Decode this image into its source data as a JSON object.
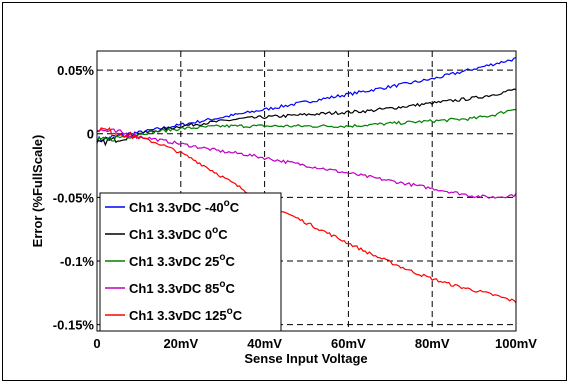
{
  "chart_data": {
    "type": "line",
    "title": "",
    "xlabel": "Sense Input Voltage",
    "ylabel": "Error (%FullScale)",
    "xlim": [
      0,
      100
    ],
    "ylim": [
      -0.155,
      0.065
    ],
    "grid": true,
    "legend_position": "bottom-left",
    "x_ticks": [
      {
        "value": 0,
        "label": "0"
      },
      {
        "value": 20,
        "label": "20mV"
      },
      {
        "value": 40,
        "label": "40mV"
      },
      {
        "value": 60,
        "label": "60mV"
      },
      {
        "value": 80,
        "label": "80mV"
      },
      {
        "value": 100,
        "label": "100mV"
      }
    ],
    "y_ticks": [
      {
        "value": 0.05,
        "label": "0.05%"
      },
      {
        "value": 0,
        "label": "0"
      },
      {
        "value": -0.05,
        "label": "-0.05%"
      },
      {
        "value": -0.1,
        "label": "-0.1%"
      },
      {
        "value": -0.15,
        "label": "-0.15%"
      }
    ],
    "x": [
      0,
      5,
      10,
      15,
      20,
      25,
      30,
      35,
      40,
      45,
      50,
      55,
      60,
      65,
      70,
      75,
      80,
      85,
      90,
      95,
      100
    ],
    "series": [
      {
        "name_prefix": "Ch1 3.3vDC ",
        "name_temp": "-40",
        "unit_sup": "o",
        "unit": "C",
        "color": "#0000ff",
        "values": [
          -0.005,
          -0.002,
          0.001,
          0.004,
          0.007,
          0.01,
          0.013,
          0.016,
          0.019,
          0.022,
          0.025,
          0.028,
          0.031,
          0.034,
          0.037,
          0.04,
          0.043,
          0.047,
          0.051,
          0.055,
          0.059
        ]
      },
      {
        "name_prefix": "Ch1 3.3vDC ",
        "name_temp": "0",
        "unit_sup": "o",
        "unit": "C",
        "color": "#000000",
        "values": [
          -0.008,
          -0.004,
          0.0,
          0.003,
          0.006,
          0.008,
          0.01,
          0.012,
          0.013,
          0.014,
          0.015,
          0.016,
          0.017,
          0.018,
          0.02,
          0.022,
          0.024,
          0.026,
          0.028,
          0.031,
          0.035
        ]
      },
      {
        "name_prefix": "Ch1 3.3vDC ",
        "name_temp": "25",
        "unit_sup": "o",
        "unit": "C",
        "color": "#008000",
        "values": [
          -0.006,
          -0.003,
          0.0,
          0.002,
          0.004,
          0.005,
          0.006,
          0.006,
          0.006,
          0.006,
          0.006,
          0.006,
          0.006,
          0.007,
          0.008,
          0.009,
          0.01,
          0.011,
          0.012,
          0.015,
          0.02
        ]
      },
      {
        "name_prefix": "Ch1 3.3vDC ",
        "name_temp": "85",
        "unit_sup": "o",
        "unit": "C",
        "color": "#c000c0",
        "values": [
          0.003,
          0.001,
          -0.002,
          -0.005,
          -0.008,
          -0.011,
          -0.014,
          -0.016,
          -0.019,
          -0.022,
          -0.025,
          -0.028,
          -0.031,
          -0.034,
          -0.037,
          -0.04,
          -0.043,
          -0.046,
          -0.049,
          -0.05,
          -0.048
        ]
      },
      {
        "name_prefix": "Ch1 3.3vDC ",
        "name_temp": "125",
        "unit_sup": "o",
        "unit": "C",
        "color": "#ff0000",
        "values": [
          0.004,
          0.001,
          -0.003,
          -0.008,
          -0.015,
          -0.024,
          -0.034,
          -0.044,
          -0.053,
          -0.062,
          -0.07,
          -0.078,
          -0.086,
          -0.094,
          -0.101,
          -0.108,
          -0.114,
          -0.119,
          -0.123,
          -0.127,
          -0.132
        ]
      }
    ]
  }
}
